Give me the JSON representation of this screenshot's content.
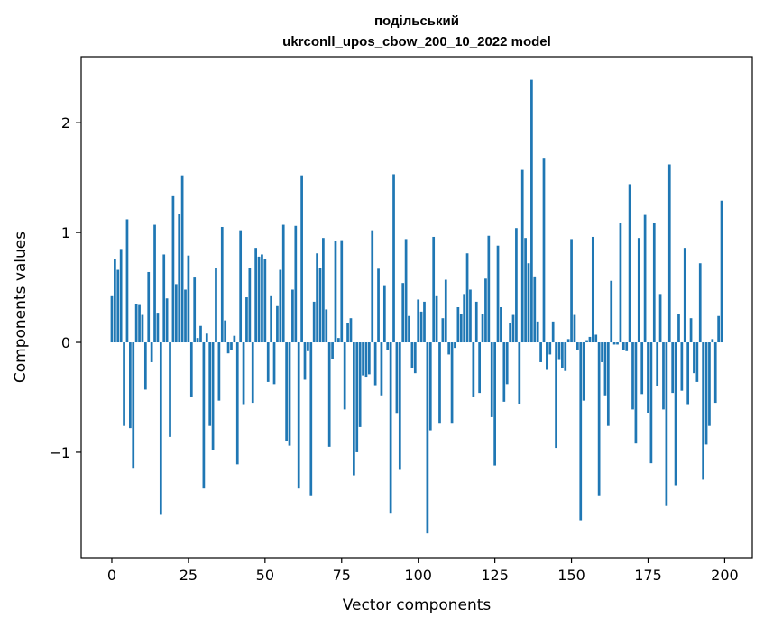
{
  "chart_data": {
    "type": "bar",
    "title_lines": [
      "подільський",
      "ukrconll_upos_cbow_200_10_2022 model"
    ],
    "xlabel": "Vector components",
    "ylabel": "Components values",
    "xlim": [
      -10,
      209
    ],
    "ylim": [
      -1.96,
      2.6
    ],
    "xticks": [
      0,
      25,
      50,
      75,
      100,
      125,
      150,
      175,
      200
    ],
    "yticks": [
      -1,
      0,
      1,
      2
    ],
    "ytick_labels": [
      "−1",
      "0",
      "1",
      "2"
    ],
    "bar_color": "#1f77b4",
    "grid": false,
    "x": [
      0,
      1,
      2,
      3,
      4,
      5,
      6,
      7,
      8,
      9,
      10,
      11,
      12,
      13,
      14,
      15,
      16,
      17,
      18,
      19,
      20,
      21,
      22,
      23,
      24,
      25,
      26,
      27,
      28,
      29,
      30,
      31,
      32,
      33,
      34,
      35,
      36,
      37,
      38,
      39,
      40,
      41,
      42,
      43,
      44,
      45,
      46,
      47,
      48,
      49,
      50,
      51,
      52,
      53,
      54,
      55,
      56,
      57,
      58,
      59,
      60,
      61,
      62,
      63,
      64,
      65,
      66,
      67,
      68,
      69,
      70,
      71,
      72,
      73,
      74,
      75,
      76,
      77,
      78,
      79,
      80,
      81,
      82,
      83,
      84,
      85,
      86,
      87,
      88,
      89,
      90,
      91,
      92,
      93,
      94,
      95,
      96,
      97,
      98,
      99,
      100,
      101,
      102,
      103,
      104,
      105,
      106,
      107,
      108,
      109,
      110,
      111,
      112,
      113,
      114,
      115,
      116,
      117,
      118,
      119,
      120,
      121,
      122,
      123,
      124,
      125,
      126,
      127,
      128,
      129,
      130,
      131,
      132,
      133,
      134,
      135,
      136,
      137,
      138,
      139,
      140,
      141,
      142,
      143,
      144,
      145,
      146,
      147,
      148,
      149,
      150,
      151,
      152,
      153,
      154,
      155,
      156,
      157,
      158,
      159,
      160,
      161,
      162,
      163,
      164,
      165,
      166,
      167,
      168,
      169,
      170,
      171,
      172,
      173,
      174,
      175,
      176,
      177,
      178,
      179,
      180,
      181,
      182,
      183,
      184,
      185,
      186,
      187,
      188,
      189,
      190,
      191,
      192,
      193,
      194,
      195,
      196,
      197,
      198,
      199
    ],
    "values": [
      0.42,
      0.76,
      0.66,
      0.85,
      -0.76,
      1.12,
      -0.78,
      -1.15,
      0.35,
      0.34,
      0.25,
      -0.43,
      0.64,
      -0.18,
      1.07,
      0.27,
      -1.57,
      0.8,
      0.4,
      -0.86,
      1.33,
      0.53,
      1.17,
      1.52,
      0.48,
      0.79,
      -0.5,
      0.59,
      0.04,
      0.15,
      -1.33,
      0.08,
      -0.76,
      -0.98,
      0.68,
      -0.53,
      1.05,
      0.2,
      -0.1,
      -0.07,
      0.06,
      -1.11,
      1.02,
      -0.57,
      0.41,
      0.68,
      -0.55,
      0.86,
      0.78,
      0.8,
      0.76,
      -0.36,
      0.42,
      -0.38,
      0.33,
      0.66,
      1.07,
      -0.9,
      -0.94,
      0.48,
      1.06,
      -1.33,
      1.52,
      -0.34,
      -0.08,
      -1.4,
      0.37,
      0.81,
      0.68,
      0.95,
      0.3,
      -0.95,
      -0.15,
      0.92,
      0.04,
      0.93,
      -0.61,
      0.18,
      0.22,
      -1.21,
      -1.0,
      -0.77,
      -0.3,
      -0.32,
      -0.29,
      1.02,
      -0.39,
      0.67,
      -0.49,
      0.52,
      -0.07,
      -1.56,
      1.53,
      -0.65,
      -1.16,
      0.54,
      0.94,
      0.24,
      -0.23,
      -0.28,
      0.39,
      0.28,
      0.37,
      -1.74,
      -0.8,
      0.96,
      0.42,
      -0.74,
      0.22,
      0.57,
      -0.11,
      -0.74,
      -0.05,
      0.32,
      0.26,
      0.44,
      0.81,
      0.48,
      -0.5,
      0.37,
      -0.46,
      0.26,
      0.58,
      0.97,
      -0.68,
      -1.12,
      0.88,
      0.32,
      -0.54,
      -0.38,
      0.18,
      0.25,
      1.04,
      -0.56,
      1.57,
      0.95,
      0.72,
      2.39,
      0.6,
      0.19,
      -0.18,
      1.68,
      -0.25,
      -0.11,
      0.19,
      -0.96,
      -0.16,
      -0.23,
      -0.26,
      0.03,
      0.94,
      0.25,
      -0.07,
      -1.62,
      -0.53,
      0.02,
      0.05,
      0.96,
      0.07,
      -1.4,
      -0.18,
      -0.49,
      -0.76,
      0.56,
      -0.02,
      -0.02,
      1.09,
      -0.07,
      -0.08,
      1.44,
      -0.61,
      -0.92,
      0.95,
      -0.47,
      1.16,
      -0.64,
      -1.1,
      1.09,
      -0.4,
      0.44,
      -0.61,
      -1.49,
      1.62,
      -0.46,
      -1.3,
      0.26,
      -0.44,
      0.86,
      -0.57,
      0.22,
      -0.28,
      -0.36,
      0.72,
      -1.25,
      -0.93,
      -0.76,
      0.03,
      -0.55,
      0.24,
      1.29
    ]
  }
}
